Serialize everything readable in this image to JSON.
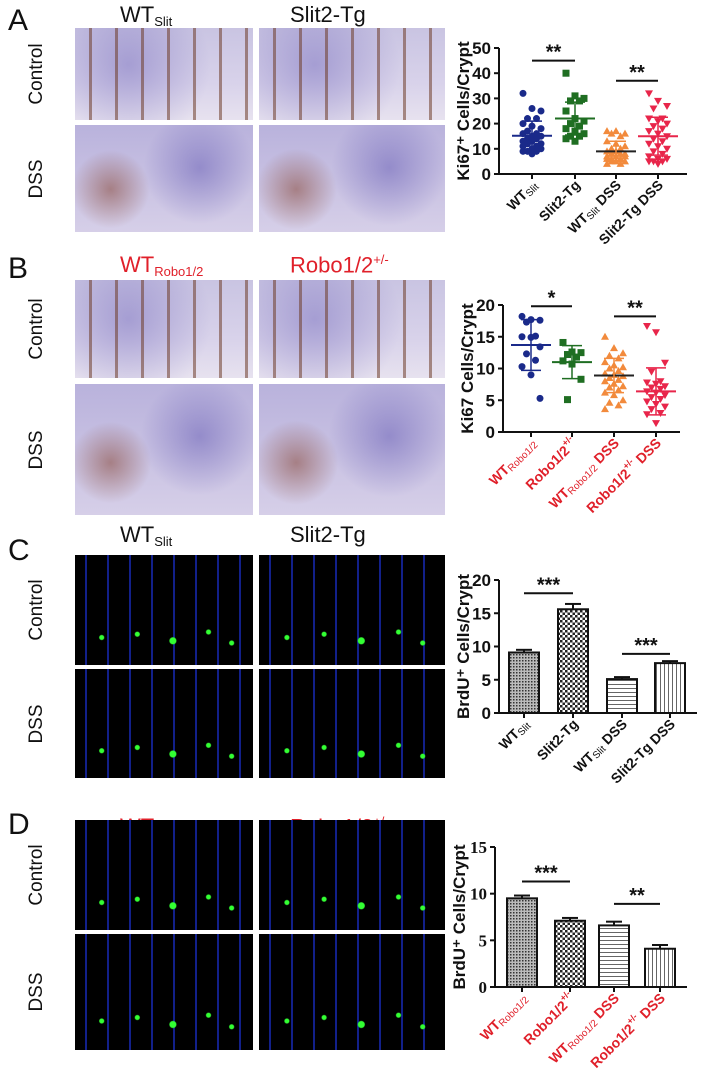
{
  "panels": [
    {
      "letter": "A",
      "col1": {
        "main": "WT",
        "sub": "Slit",
        "sup": ""
      },
      "col2": {
        "main": "Slit2-Tg",
        "sub": "",
        "sup": ""
      },
      "rows": [
        "Control",
        "DSS"
      ],
      "header_color": "#111111"
    },
    {
      "letter": "B",
      "col1": {
        "main": "WT",
        "sub": "Robo1/2",
        "sup": ""
      },
      "col2": {
        "main": "Robo1/2",
        "sub": "",
        "sup": "+/-"
      },
      "rows": [
        "Control",
        "DSS"
      ],
      "header_color": "#e0202a"
    },
    {
      "letter": "C",
      "col1": {
        "main": "WT",
        "sub": "Slit",
        "sup": ""
      },
      "col2": {
        "main": "Slit2-Tg",
        "sub": "",
        "sup": ""
      },
      "rows": [
        "Control",
        "DSS"
      ],
      "header_color": "#111111"
    },
    {
      "letter": "D",
      "col1": {
        "main": "WT",
        "sub": "Robo1/2",
        "sup": ""
      },
      "col2": {
        "main": "Robo1/2",
        "sub": "",
        "sup": "+/-"
      },
      "rows": [
        "Control",
        "DSS"
      ],
      "header_color": "#e0202a"
    }
  ],
  "chart_data": [
    {
      "type": "scatter",
      "ylabel": "Ki67⁺ Cells/Crypt",
      "ylim": [
        0,
        50
      ],
      "yticks": [
        0,
        10,
        20,
        30,
        40,
        50
      ],
      "label_color": "#111111",
      "categories": [
        [
          "WT",
          "Slit",
          ""
        ],
        [
          "Slit2-Tg",
          "",
          ""
        ],
        [
          "WT",
          "Slit",
          " DSS"
        ],
        [
          "Slit2-Tg DSS",
          "",
          ""
        ]
      ],
      "series": [
        {
          "marker": "circle",
          "color": "#1a2a8a",
          "values": [
            32,
            26,
            25,
            22,
            22,
            20,
            19,
            18,
            17,
            16,
            16,
            15,
            15,
            14,
            14,
            13,
            13,
            12,
            12,
            11,
            11,
            10,
            10,
            9,
            9,
            9,
            8
          ],
          "mean": 15.2,
          "sd": 5.8
        },
        {
          "marker": "square",
          "color": "#1f6e22",
          "values": [
            40,
            31,
            30,
            29,
            29,
            25,
            22,
            21,
            20,
            19,
            18,
            17,
            16,
            15,
            15,
            14,
            13
          ],
          "mean": 22,
          "sd": 6.5
        },
        {
          "marker": "triangle-up",
          "color": "#f28a3c",
          "values": [
            17,
            17,
            16,
            16,
            15,
            13,
            12,
            11,
            10,
            10,
            9,
            9,
            8,
            8,
            8,
            7,
            7,
            7,
            6,
            6,
            6,
            5,
            5,
            5,
            4,
            4
          ],
          "mean": 9,
          "sd": 4
        },
        {
          "marker": "triangle-down",
          "color": "#e8254a",
          "values": [
            32,
            29,
            27,
            26,
            22,
            22,
            21,
            20,
            19,
            18,
            17,
            16,
            15,
            14,
            13,
            12,
            11,
            10,
            9,
            8,
            7,
            6,
            6,
            5,
            5,
            5,
            4
          ],
          "mean": 15,
          "sd": 7.5
        }
      ],
      "significance": [
        {
          "groups": [
            1,
            2
          ],
          "label": "**",
          "y": 45
        },
        {
          "groups": [
            3,
            4
          ],
          "label": "**",
          "y": 37
        }
      ]
    },
    {
      "type": "scatter",
      "ylabel": "Ki67 Cells/Crypt",
      "ylim": [
        0,
        20
      ],
      "yticks": [
        0,
        5,
        10,
        15,
        20
      ],
      "label_color": "#e0202a",
      "categories": [
        [
          "WT",
          "Robo1/2",
          ""
        ],
        [
          "Robo1/2",
          "",
          "+/-"
        ],
        [
          "WT",
          "Robo1/2",
          " DSS"
        ],
        [
          "Robo1/2",
          "",
          "+/-",
          " DSS"
        ]
      ],
      "series": [
        {
          "marker": "circle",
          "color": "#1a2a8a",
          "values": [
            18.2,
            17.7,
            17.6,
            17.3,
            15.1,
            15,
            14.9,
            13.4,
            12.3,
            11.3,
            10.3,
            9,
            5.3
          ],
          "mean": 13.7,
          "sd": 4
        },
        {
          "marker": "square",
          "color": "#1f6e22",
          "values": [
            14.1,
            12.6,
            12.5,
            12.2,
            11.8,
            11.2,
            10.7,
            8.3,
            5.1
          ],
          "mean": 11,
          "sd": 2.6
        },
        {
          "marker": "triangle-up",
          "color": "#f28a3c",
          "values": [
            15,
            13.2,
            12.4,
            12,
            11.6,
            11,
            10.5,
            10.2,
            10,
            9.6,
            9.2,
            9,
            8.8,
            8.5,
            8.2,
            8,
            7.6,
            7.2,
            7,
            6.6,
            6.2,
            5.8,
            5,
            4.6,
            4.2,
            3.6
          ],
          "mean": 8.9,
          "sd": 2.7
        },
        {
          "marker": "triangle-down",
          "color": "#e8254a",
          "values": [
            16.7,
            15.7,
            10.9,
            9.5,
            8,
            7.8,
            7.6,
            7.2,
            7,
            6.8,
            6.4,
            6.2,
            5.8,
            5.5,
            5.2,
            4.8,
            4.4,
            4,
            3.6,
            3,
            2.8,
            1.4
          ],
          "mean": 6.4,
          "sd": 3.7
        }
      ],
      "significance": [
        {
          "groups": [
            1,
            2
          ],
          "label": "*",
          "y": 19.8
        },
        {
          "groups": [
            3,
            4
          ],
          "label": "**",
          "y": 18.2
        }
      ]
    },
    {
      "type": "bar",
      "ylabel": "BrdU⁺ Cells/Crypt",
      "ylim": [
        0,
        20
      ],
      "yticks": [
        0,
        5,
        10,
        15,
        20
      ],
      "label_color": "#111111",
      "categories": [
        [
          "WT",
          "Slit",
          ""
        ],
        [
          "Slit2-Tg",
          "",
          ""
        ],
        [
          "WT",
          "Slit",
          " DSS"
        ],
        [
          "Slit2-Tg DSS",
          "",
          ""
        ]
      ],
      "values": [
        9.1,
        15.6,
        5.1,
        7.5
      ],
      "errors": [
        0.4,
        0.8,
        0.3,
        0.3
      ],
      "patterns": [
        "dense-grid",
        "checker",
        "horizontal-lines",
        "vertical-lines"
      ],
      "significance": [
        {
          "groups": [
            1,
            2
          ],
          "label": "***",
          "y": 18
        },
        {
          "groups": [
            3,
            4
          ],
          "label": "***",
          "y": 8.9
        }
      ]
    },
    {
      "type": "bar",
      "ylabel": "BrdU⁺ Cells/Crypt",
      "ylim": [
        0,
        15
      ],
      "yticks": [
        0,
        5,
        10,
        15
      ],
      "label_color": "#e0202a",
      "categories": [
        [
          "WT",
          "Robo1/2",
          ""
        ],
        [
          "Robo1/2",
          "",
          "+/-"
        ],
        [
          "WT",
          "Robo1/2",
          " DSS"
        ],
        [
          "Robo1/2",
          "",
          "+/-",
          " DSS"
        ]
      ],
      "values": [
        9.5,
        7.1,
        6.6,
        4.1
      ],
      "errors": [
        0.3,
        0.3,
        0.4,
        0.4
      ],
      "patterns": [
        "dense-grid",
        "checker",
        "horizontal-lines",
        "vertical-lines"
      ],
      "significance": [
        {
          "groups": [
            1,
            2
          ],
          "label": "***",
          "y": 11.3
        },
        {
          "groups": [
            3,
            4
          ],
          "label": "**",
          "y": 8.9
        }
      ]
    }
  ]
}
